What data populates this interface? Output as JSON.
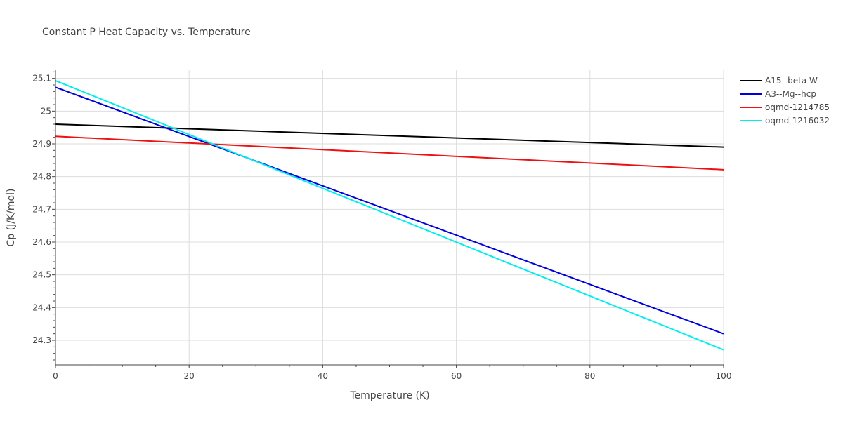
{
  "chart_data": {
    "type": "line",
    "title": "Constant P Heat Capacity vs. Temperature",
    "xlabel": "Temperature (K)",
    "ylabel": "Cp (J/K/mol)",
    "xlim": [
      0,
      100
    ],
    "ylim": [
      24.225,
      25.125
    ],
    "grid": true,
    "legend_position": "top-right",
    "x_ticks": [
      0,
      20,
      40,
      60,
      80,
      100
    ],
    "x_tick_labels": [
      "0",
      "20",
      "40",
      "60",
      "80",
      "100"
    ],
    "y_ticks": [
      24.3,
      24.4,
      24.5,
      24.6,
      24.7,
      24.8,
      24.9,
      25.0,
      25.1
    ],
    "y_tick_labels": [
      "24.3",
      "24.4",
      "24.5",
      "24.6",
      "24.7",
      "24.8",
      "24.9",
      "25",
      "25.1"
    ],
    "series": [
      {
        "name": "A15--beta-W",
        "color": "#000000",
        "x": [
          0,
          100
        ],
        "y": [
          24.96,
          24.89
        ]
      },
      {
        "name": "A3--Mg--hcp",
        "color": "#0000dd",
        "x": [
          0,
          100
        ],
        "y": [
          25.073,
          24.32
        ]
      },
      {
        "name": "oqmd-1214785",
        "color": "#ee1111",
        "x": [
          0,
          100
        ],
        "y": [
          24.923,
          24.821
        ]
      },
      {
        "name": "oqmd-1216032",
        "color": "#00eeee",
        "x": [
          0,
          100
        ],
        "y": [
          25.093,
          24.271
        ]
      }
    ]
  }
}
